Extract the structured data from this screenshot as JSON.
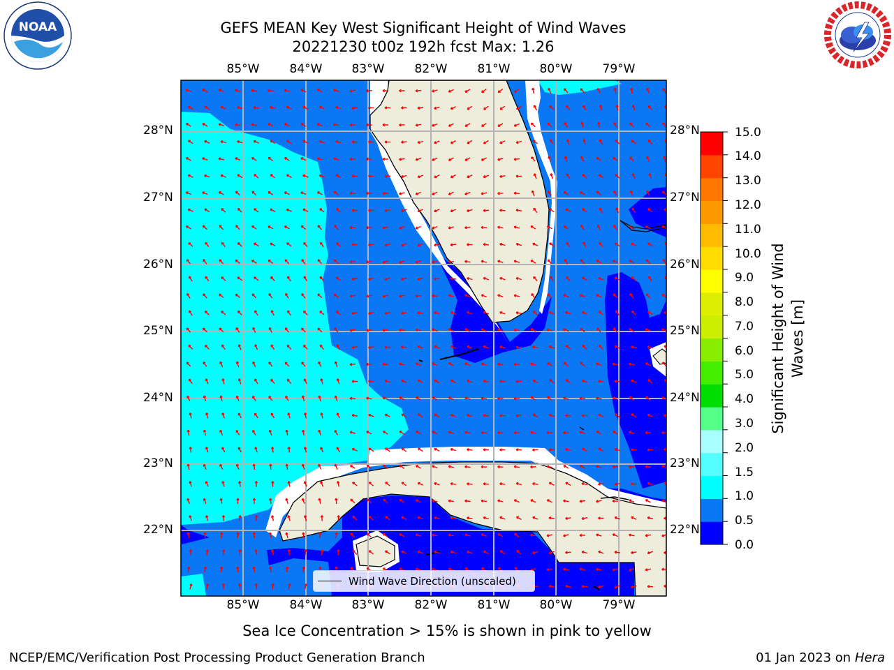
{
  "header": {
    "title_line1": "GEFS MEAN Key West Significant Height of Wind Waves",
    "title_line2": "20221230 t00z 192h fcst   Max: 1.26"
  },
  "logos": {
    "left": {
      "name": "noaa-logo",
      "text": "NOAA"
    },
    "right": {
      "name": "national-weather-service-logo",
      "ring_text": "NATIONAL WEATHER SERVICE"
    }
  },
  "map": {
    "lon_labels": [
      "85°W",
      "84°W",
      "83°W",
      "82°W",
      "81°W",
      "80°W",
      "79°W"
    ],
    "lat_labels": [
      "28°N",
      "27°N",
      "26°N",
      "25°N",
      "24°N",
      "23°N",
      "22°N"
    ],
    "legend_label": "Wind Wave Direction (unscaled)",
    "colors": {
      "land": "#eeeddc",
      "band_0_0.5": "#0000ff",
      "band_0.5_1.0": "#0a78f5",
      "band_1.0_1.5": "#00ffff",
      "arrow": "#ff0000",
      "grid": "#b4b4b4"
    }
  },
  "colorbar": {
    "label": "Significant Height of Wind Waves [m]",
    "ticks": [
      "15.0",
      "14.0",
      "13.0",
      "12.0",
      "11.0",
      "10.0",
      "9.0",
      "8.0",
      "7.0",
      "6.0",
      "5.0",
      "4.0",
      "3.0",
      "2.0",
      "1.5",
      "1.0",
      "0.5",
      "0.0"
    ],
    "colors_bottom_to_top": [
      "#0000ff",
      "#0a78f5",
      "#00ffff",
      "#55ffff",
      "#aaffff",
      "#55ff88",
      "#00dd00",
      "#44ee00",
      "#88ee00",
      "#ccee00",
      "#ddee00",
      "#ffff00",
      "#ffdd00",
      "#ffbb00",
      "#ff9900",
      "#ff7700",
      "#ff4400",
      "#ff0000"
    ]
  },
  "footer": {
    "ice_note": "Sea Ice Concentration > 15% is shown in pink to yellow",
    "left": "NCEP/EMC/Verification Post Processing Product Generation Branch",
    "right_prefix": "01 Jan 2023 on ",
    "right_host": "Hera"
  }
}
